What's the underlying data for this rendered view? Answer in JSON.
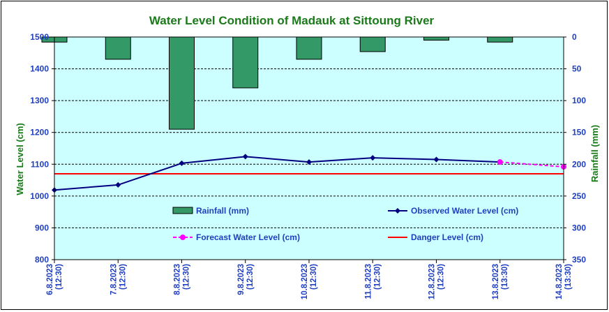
{
  "chart_data": {
    "type": "bar+line",
    "title": "Water Level Condition of Madauk at Sittoung River",
    "ylabel_left": "Water Level (cm)",
    "ylabel_right": "Rainfall (mm)",
    "ylim_left": [
      800,
      1500
    ],
    "yticks_left": [
      "800",
      "900",
      "1000",
      "1100",
      "1200",
      "1300",
      "1400",
      "1500"
    ],
    "ylim_right": [
      350,
      0
    ],
    "yticks_right": [
      "0",
      "50",
      "100",
      "150",
      "200",
      "250",
      "300",
      "350"
    ],
    "grid": true,
    "categories": [
      [
        "6.8.2023",
        "(12:30)"
      ],
      [
        "7.8.2023",
        "(12:30)"
      ],
      [
        "8.8.2023",
        "(12:30)"
      ],
      [
        "9.8.2023",
        "(12:30)"
      ],
      [
        "10.8.2023",
        "(12:30)"
      ],
      [
        "11.8.2023",
        "(12:30)"
      ],
      [
        "12.8.2023",
        "(12:30)"
      ],
      [
        "13.8.2023",
        "(13:30)"
      ],
      [
        "14.8.2023",
        "(13:30)"
      ]
    ],
    "series": [
      {
        "name": "Rainfall (mm)",
        "kind": "bar",
        "axis": "right",
        "color": "#339966",
        "values": [
          8,
          35,
          145,
          80,
          35,
          23,
          5,
          8,
          null
        ]
      },
      {
        "name": "Observed Water Level (cm)",
        "kind": "line",
        "axis": "left",
        "color": "#000080",
        "values": [
          1019,
          1035,
          1103,
          1124,
          1107,
          1120,
          1115,
          1107,
          null
        ]
      },
      {
        "name": "Forecast Water Level (cm)",
        "kind": "line-dashed",
        "axis": "left",
        "color": "#ff00ff",
        "values": [
          null,
          null,
          null,
          null,
          null,
          null,
          null,
          1107,
          1092
        ]
      },
      {
        "name": "Danger Level (cm)",
        "kind": "hline",
        "axis": "left",
        "color": "#ff0000",
        "value": 1070
      }
    ],
    "legend": "inside-bottom",
    "colors": {
      "plot_background": "#ccffff",
      "title": "#1a7a1a",
      "ticks": "#1f3fbf"
    }
  }
}
